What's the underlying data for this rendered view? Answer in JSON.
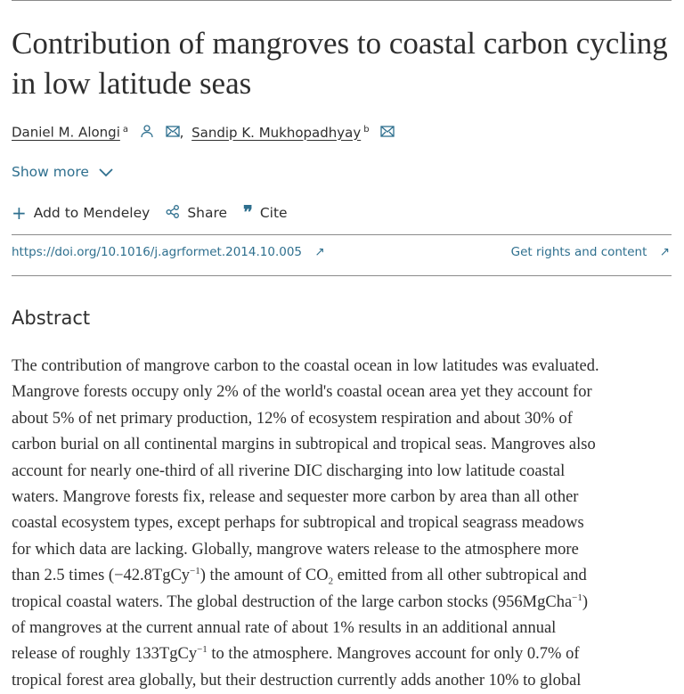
{
  "article": {
    "title": "Contribution of mangroves to coastal carbon cycling in low latitude seas",
    "authors": [
      {
        "name": "Daniel M. Alongi",
        "affiliation": "a"
      },
      {
        "name": "Sandip K. Mukhopadhyay",
        "affiliation": "b"
      }
    ],
    "author_separator": ",",
    "show_more": "Show more",
    "actions": {
      "mendeley": "Add to Mendeley",
      "share": "Share",
      "cite": "Cite"
    },
    "doi": "https://doi.org/10.1016/j.agrformet.2014.10.005",
    "rights": "Get rights and content",
    "accent": "#2e6f8e"
  },
  "abstract": {
    "heading": "Abstract",
    "l1": "The contribution of mangrove carbon to the coastal ocean in low latitudes was evaluated.",
    "l2": "Mangrove forests occupy only 2% of the world's coastal ocean area yet they account for",
    "l3": "about 5% of net primary production, 12% of ecosystem respiration and about 30% of",
    "l4": "carbon burial on all continental margins in subtropical and tropical seas. Mangroves also",
    "l5": "account for nearly one-third of all riverine DIC discharging into low latitude coastal",
    "l6": "waters. Mangrove forests fix, release and sequester more carbon by area than all other",
    "l7": "coastal ecosystem types, except perhaps for subtropical and tropical seagrass meadows",
    "l8": "for which data are lacking. Globally, mangrove waters release to the atmosphere more",
    "l9a": "than 2.5 times (−42.8TgCy",
    "l9b": "−1",
    "l9c": ") the amount of CO",
    "l9d": "2",
    "l9e": " emitted from all other subtropical and",
    "l10a": "tropical coastal waters. The global destruction of the large carbon stocks (956MgCha",
    "l10b": "−1",
    "l10c": ")",
    "l11": "of mangroves at the current annual rate of about 1% results in an additional annual",
    "l12a": "release of roughly 133TgCy",
    "l12b": "−1",
    "l12c": " to the atmosphere. Mangroves account for only 0.7% of",
    "l13": "tropical forest area globally, but their destruction currently adds another 10% to global"
  }
}
